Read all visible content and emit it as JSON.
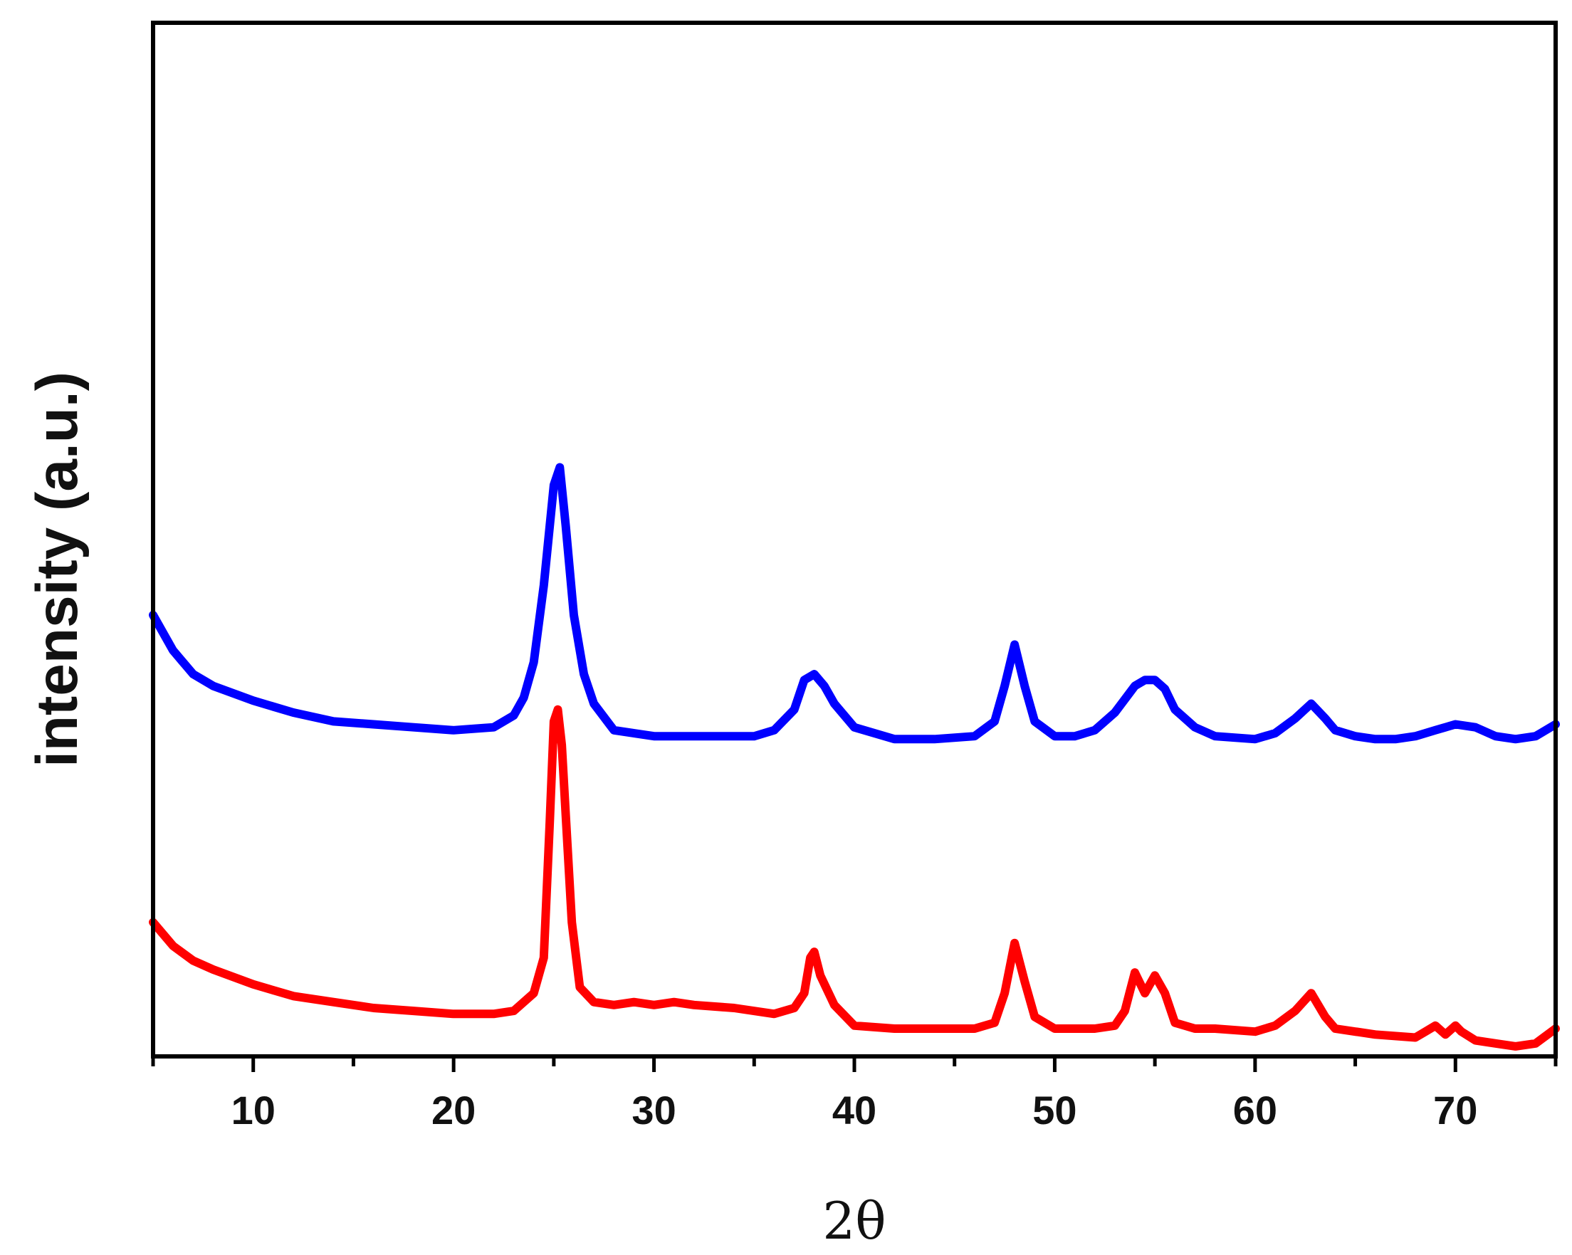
{
  "chart_data": {
    "type": "line",
    "title": "",
    "xlabel": "2θ",
    "ylabel": "intensity (a.u.)",
    "xlim": [
      5,
      75
    ],
    "ylim": [
      0,
      100
    ],
    "xticks": [
      10,
      20,
      30,
      40,
      50,
      60,
      70
    ],
    "minor_xticks": [
      5,
      15,
      25,
      35,
      45,
      55,
      65,
      75
    ],
    "yticks": [],
    "grid": false,
    "legend": "none",
    "series": [
      {
        "color": "#0000ff",
        "x": [
          5,
          6,
          7,
          8,
          10,
          12,
          14,
          16,
          18,
          20,
          22,
          23,
          23.5,
          24,
          24.5,
          25,
          25.3,
          25.6,
          26,
          26.5,
          27,
          28,
          30,
          32,
          34,
          35,
          36,
          37,
          37.5,
          38,
          38.5,
          39,
          40,
          42,
          44,
          46,
          47,
          47.5,
          48,
          48.5,
          49,
          50,
          51,
          52,
          53,
          54,
          54.5,
          55,
          55.5,
          56,
          57,
          58,
          60,
          61,
          62,
          62.8,
          63.5,
          64,
          65,
          66,
          67,
          68,
          69,
          70,
          71,
          72,
          73,
          74,
          75
        ],
        "y": [
          70,
          64,
          60,
          58,
          55.5,
          53.5,
          52,
          51.5,
          51,
          50.5,
          51,
          53,
          56,
          62,
          75,
          92,
          95,
          85,
          70,
          60,
          55,
          50.5,
          49.5,
          49.5,
          49.5,
          49.5,
          50.5,
          54,
          59,
          60,
          58,
          55,
          51,
          49,
          49,
          49.5,
          52,
          58,
          65,
          58,
          52,
          49.5,
          49.5,
          50.5,
          53.5,
          58,
          59,
          59,
          57.5,
          54,
          51,
          49.5,
          49,
          50,
          52.5,
          55,
          52.5,
          50.5,
          49.5,
          49,
          49,
          49.5,
          50.5,
          51.5,
          51,
          49.5,
          49,
          49.5,
          51.5
        ]
      },
      {
        "color": "#ff0000",
        "x": [
          5,
          6,
          7,
          8,
          10,
          12,
          14,
          16,
          18,
          20,
          22,
          23,
          24,
          24.5,
          24.8,
          25,
          25.2,
          25.4,
          25.6,
          25.9,
          26.3,
          27,
          28,
          29,
          30,
          31,
          32,
          34,
          36,
          37,
          37.5,
          37.8,
          38,
          38.3,
          39,
          40,
          42,
          44,
          46,
          47,
          47.5,
          48,
          48.5,
          49,
          50,
          52,
          53,
          53.5,
          54,
          54.5,
          55,
          55.5,
          56,
          57,
          58,
          60,
          61,
          62,
          62.8,
          63.5,
          64,
          66,
          68,
          68.5,
          69,
          69.5,
          70,
          70.3,
          71,
          72,
          73,
          74,
          75
        ],
        "y": [
          18,
          14,
          11.5,
          10,
          7.5,
          5.5,
          4.5,
          3.5,
          3,
          2.5,
          2.5,
          3,
          6,
          12,
          35,
          52,
          54,
          48,
          36,
          18,
          7,
          4.5,
          4,
          4.5,
          4,
          4.5,
          4,
          3.5,
          2.5,
          3.5,
          6,
          12,
          13,
          9,
          4,
          0.5,
          0,
          0,
          0,
          1,
          6,
          14.5,
          8,
          2,
          0,
          0,
          0.5,
          3,
          9.5,
          6,
          9,
          6,
          1,
          0,
          0,
          -0.5,
          0.5,
          3,
          6,
          2,
          0,
          -1,
          -1.5,
          -0.5,
          0.5,
          -1,
          0.5,
          -0.5,
          -2,
          -2.5,
          -3,
          -2.5,
          0
        ]
      }
    ]
  }
}
